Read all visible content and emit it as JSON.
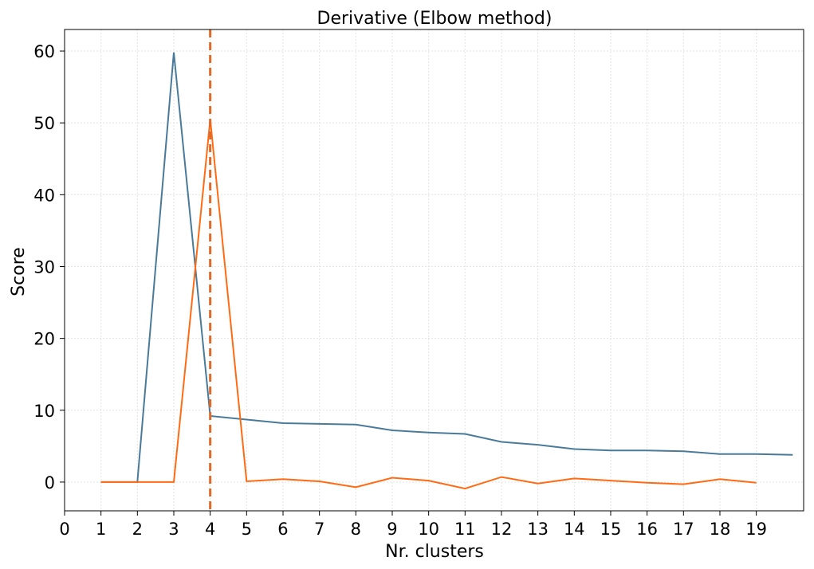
{
  "chart_data": {
    "type": "line",
    "title": "Derivative (Elbow method)",
    "xlabel": "Nr. clusters",
    "ylabel": "Score",
    "xlim": [
      0,
      20.3
    ],
    "ylim": [
      -4,
      63
    ],
    "xticks": [
      0,
      1,
      2,
      3,
      4,
      5,
      6,
      7,
      8,
      9,
      10,
      11,
      12,
      13,
      14,
      15,
      16,
      17,
      18,
      19
    ],
    "yticks": [
      0,
      10,
      20,
      30,
      40,
      50,
      60
    ],
    "grid": true,
    "series": [
      {
        "color": "#4a7a9a",
        "x": [
          1,
          2,
          3,
          4,
          5,
          6,
          7,
          8,
          9,
          10,
          11,
          12,
          13,
          14,
          15,
          16,
          17,
          18,
          19,
          20
        ],
        "values": [
          0,
          0,
          59.8,
          9.2,
          8.7,
          8.2,
          8.1,
          8.0,
          7.2,
          6.9,
          6.7,
          5.6,
          5.2,
          4.6,
          4.4,
          4.4,
          4.3,
          3.9,
          3.9,
          3.8
        ]
      },
      {
        "color": "#ff6a13",
        "x": [
          1,
          2,
          3,
          4,
          5,
          6,
          7,
          8,
          9,
          10,
          11,
          12,
          13,
          14,
          15,
          16,
          17,
          18,
          19
        ],
        "values": [
          0,
          0,
          0,
          50.5,
          0.1,
          0.4,
          0.1,
          -0.7,
          0.6,
          0.2,
          -0.9,
          0.7,
          -0.2,
          0.5,
          0.2,
          -0.1,
          -0.3,
          0.4,
          -0.1
        ]
      }
    ],
    "vline": {
      "x": 4,
      "color": "#e06a2b",
      "style": "dashed"
    }
  }
}
